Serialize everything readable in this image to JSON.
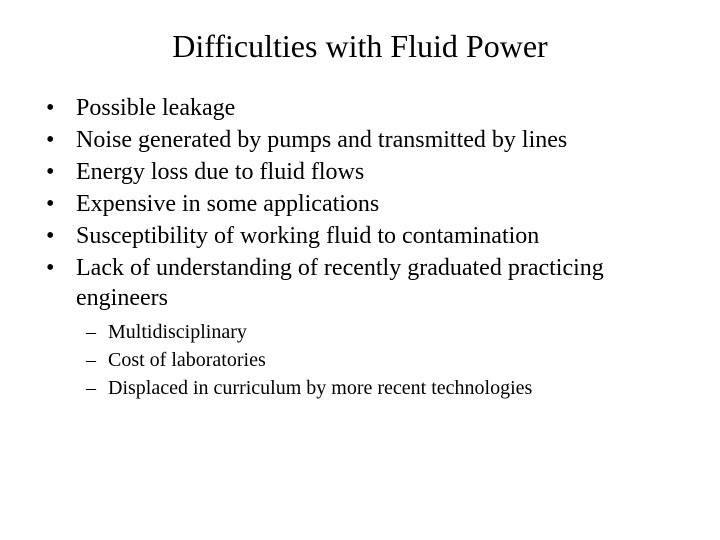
{
  "colors": {
    "background": "#ffffff",
    "text": "#000000"
  },
  "typography": {
    "family": "Times New Roman",
    "title_fontsize": 32,
    "level1_fontsize": 24,
    "level2_fontsize": 20
  },
  "title": "Difficulties with Fluid Power",
  "bullets": {
    "marker": "•",
    "items": [
      "Possible leakage",
      "Noise generated by pumps and transmitted by lines",
      "Energy loss due to fluid flows",
      "Expensive in some applications",
      "Susceptibility of working fluid to contamination",
      "Lack of understanding of recently graduated practicing engineers"
    ]
  },
  "sub_bullets": {
    "marker": "–",
    "items": [
      "Multidisciplinary",
      "Cost of laboratories",
      "Displaced in curriculum by more recent technologies"
    ]
  }
}
